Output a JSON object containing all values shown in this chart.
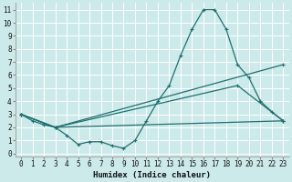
{
  "xlabel": "Humidex (Indice chaleur)",
  "bg_color": "#cceaea",
  "grid_color": "#ffffff",
  "line_color": "#1e7070",
  "xlim": [
    -0.5,
    23.5
  ],
  "ylim": [
    -0.2,
    11.5
  ],
  "xticks": [
    0,
    1,
    2,
    3,
    4,
    5,
    6,
    7,
    8,
    9,
    10,
    11,
    12,
    13,
    14,
    15,
    16,
    17,
    18,
    19,
    20,
    21,
    22,
    23
  ],
  "yticks": [
    0,
    1,
    2,
    3,
    4,
    5,
    6,
    7,
    8,
    9,
    10,
    11
  ],
  "line1_x": [
    0,
    1,
    2,
    3,
    4,
    5,
    6,
    7,
    8,
    9,
    10,
    11,
    12,
    13,
    14,
    15,
    16,
    17,
    18,
    19,
    20,
    21,
    22,
    23
  ],
  "line1_y": [
    3.0,
    2.5,
    2.2,
    2.0,
    1.4,
    0.7,
    0.9,
    0.9,
    0.6,
    0.4,
    1.0,
    2.5,
    4.0,
    5.2,
    7.5,
    9.5,
    11.0,
    11.0,
    9.5,
    6.8,
    5.8,
    4.0,
    3.2,
    2.5
  ],
  "line2_x": [
    0,
    3,
    23
  ],
  "line2_y": [
    3.0,
    2.0,
    6.8
  ],
  "line3_x": [
    0,
    3,
    19,
    23
  ],
  "line3_y": [
    3.0,
    2.0,
    5.2,
    2.5
  ],
  "line4_x": [
    0,
    3,
    23
  ],
  "line4_y": [
    3.0,
    2.0,
    2.5
  ]
}
